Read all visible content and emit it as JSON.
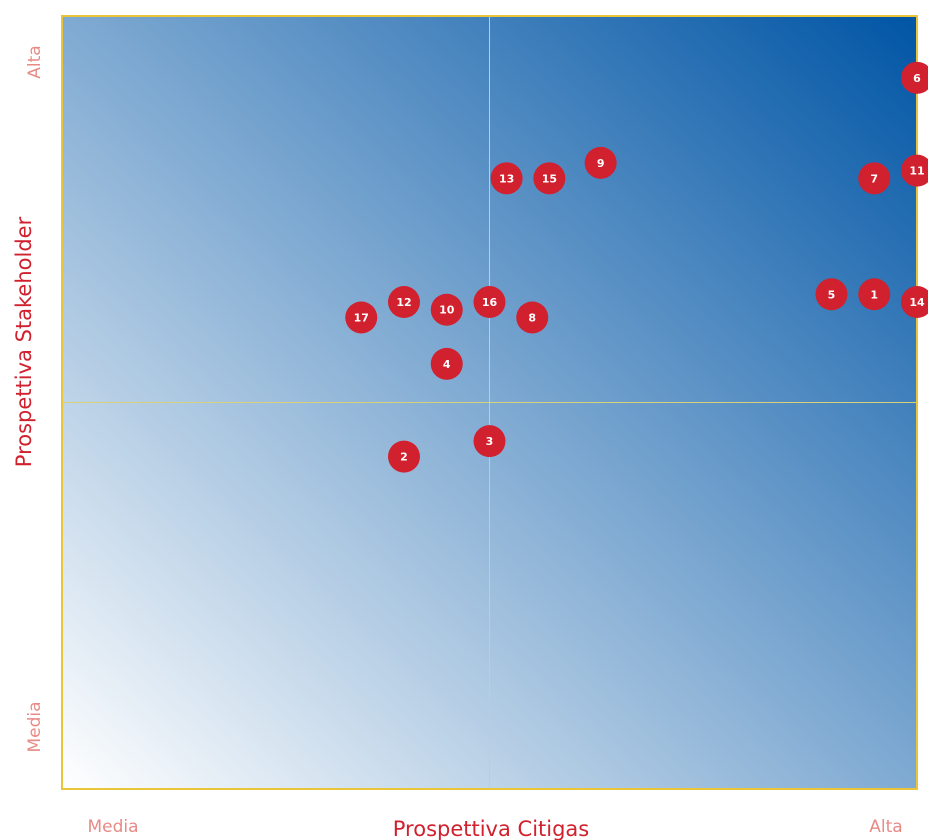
{
  "chart_data": {
    "type": "scatter",
    "title": "",
    "xlabel": "Prospettiva Citigas",
    "ylabel": "Prospettiva Stakeholder",
    "x_ticks": {
      "low": "Media",
      "high": "Alta"
    },
    "y_ticks": {
      "low": "Media",
      "high": "Alta"
    },
    "xlim": [
      0,
      10
    ],
    "ylim": [
      0,
      10
    ],
    "midline": 5,
    "grid": false,
    "points": [
      {
        "label": "1",
        "x": 9.5,
        "y": 6.4
      },
      {
        "label": "2",
        "x": 4.0,
        "y": 4.3
      },
      {
        "label": "3",
        "x": 5.0,
        "y": 4.5
      },
      {
        "label": "4",
        "x": 4.5,
        "y": 5.5
      },
      {
        "label": "5",
        "x": 9.0,
        "y": 6.4
      },
      {
        "label": "6",
        "x": 10.0,
        "y": 9.2
      },
      {
        "label": "7",
        "x": 9.5,
        "y": 7.9
      },
      {
        "label": "8",
        "x": 5.5,
        "y": 6.1
      },
      {
        "label": "9",
        "x": 6.3,
        "y": 8.1
      },
      {
        "label": "10",
        "x": 4.5,
        "y": 6.2
      },
      {
        "label": "11",
        "x": 10.0,
        "y": 8.0
      },
      {
        "label": "12",
        "x": 4.0,
        "y": 6.3
      },
      {
        "label": "13",
        "x": 5.2,
        "y": 7.9
      },
      {
        "label": "14",
        "x": 10.0,
        "y": 6.3
      },
      {
        "label": "15",
        "x": 5.7,
        "y": 7.9
      },
      {
        "label": "16",
        "x": 5.0,
        "y": 6.3
      },
      {
        "label": "17",
        "x": 3.5,
        "y": 6.1
      }
    ]
  },
  "colors": {
    "gradient_light": "#ffffff",
    "gradient_dark": "#0055a5",
    "frame": "#e9c53a",
    "quadrant_lines": "#d9d07a",
    "marker_fill": "#d1202e",
    "marker_text": "#ffffff",
    "axis_title_text": "#d1202e",
    "tick_text": "#e88a86"
  }
}
